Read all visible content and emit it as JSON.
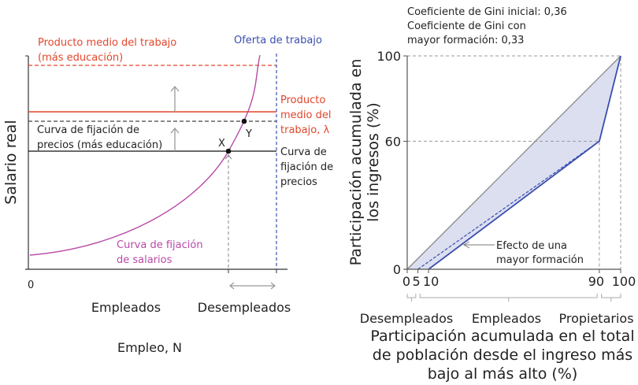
{
  "left": {
    "y_label": "Salario real",
    "x_label": "Empleo, N",
    "origin": "0",
    "labels": {
      "avg_product_edu": [
        "Producto medio del trabajo",
        "(más educación)"
      ],
      "labor_supply": "Oferta de trabajo",
      "avg_product": [
        "Producto",
        "medio del",
        "trabajo, λ"
      ],
      "price_setting_edu": [
        "Curva de fijación de",
        "precios (más educación)"
      ],
      "price_setting": [
        "Curva de",
        "fijación de",
        "precios"
      ],
      "wage_setting": [
        "Curva de fijación",
        "de salarios"
      ],
      "point_x": "X",
      "point_y": "Y",
      "employed": "Empleados",
      "unemployed": "Desempleados"
    },
    "colors": {
      "red": "#e2462b",
      "blue": "#3a4fae",
      "magenta": "#b84aa8"
    }
  },
  "right": {
    "gini": [
      "Coeficiente de Gini inicial: 0,36",
      "Coeficiente de Gini con",
      "mayor formación: 0,33"
    ],
    "y_label": [
      "Participación acumulada en",
      "los ingresos (%)"
    ],
    "x_label": [
      "Participación acumulada en el total",
      "de población desde el ingreso más",
      "bajo al más alto (%)"
    ],
    "y_ticks": [
      "0",
      "60",
      "100"
    ],
    "x_ticks": [
      "0",
      "5",
      "10",
      "90",
      "100"
    ],
    "groups": [
      "Desempleados",
      "Empleados",
      "Propietarios"
    ],
    "annotation": [
      "Efecto de una",
      "mayor formación"
    ],
    "lorenz_initial": [
      [
        0,
        0
      ],
      [
        10,
        0
      ],
      [
        90,
        60
      ],
      [
        100,
        100
      ]
    ],
    "lorenz_more_training": [
      [
        0,
        0
      ],
      [
        5,
        0
      ],
      [
        90,
        60
      ],
      [
        100,
        100
      ]
    ],
    "colors": {
      "curve": "#3a4fae",
      "fill": "#dcdff0",
      "equality": "#888888"
    }
  }
}
